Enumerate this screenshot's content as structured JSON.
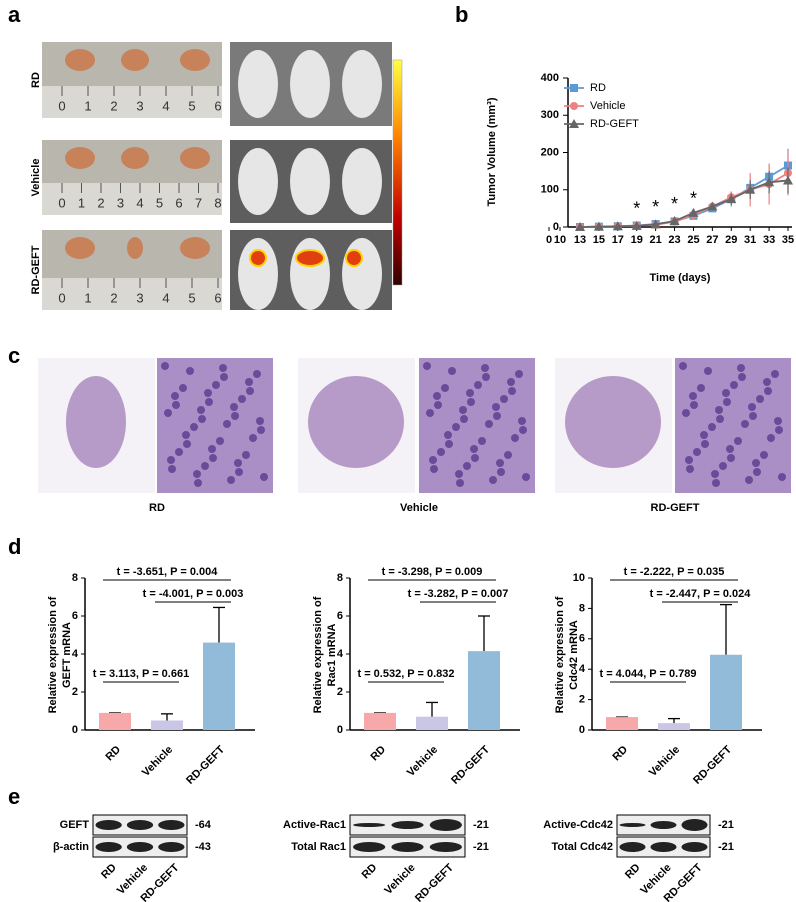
{
  "panel_labels": [
    "a",
    "b",
    "c",
    "d",
    "e"
  ],
  "panel_a": {
    "rows": [
      "RD",
      "Vehicle",
      "RD-GEFT"
    ],
    "rulers": [
      [
        0,
        1,
        2,
        3,
        4,
        5,
        6
      ],
      [
        0,
        1,
        2,
        3,
        4,
        5,
        6,
        7,
        8
      ],
      [
        0,
        1,
        2,
        3,
        4,
        5,
        6
      ]
    ]
  },
  "panel_c": {
    "labels": [
      "RD",
      "Vehicle",
      "RD-GEFT"
    ]
  },
  "panel_e": {
    "lanes": [
      "RD",
      "Vehicle",
      "RD-GEFT"
    ],
    "blots": [
      {
        "labels": [
          "GEFT",
          "β-actin"
        ],
        "sizes": [
          "-64",
          "-43"
        ]
      },
      {
        "labels": [
          "Active-Rac1",
          "Total Rac1"
        ],
        "sizes": [
          "-21",
          "-21"
        ]
      },
      {
        "labels": [
          "Active-Cdc42",
          "Total Cdc42"
        ],
        "sizes": [
          "-21",
          "-21"
        ]
      }
    ]
  },
  "chart_data": [
    {
      "type": "line",
      "xlabel": "Time (days)",
      "ylabel": "Tumor Volume (mm³)",
      "xlim": [
        0,
        35
      ],
      "ylim": [
        0,
        400
      ],
      "xticks": [
        0,
        10,
        13,
        15,
        17,
        19,
        21,
        23,
        25,
        27,
        29,
        31,
        33,
        35
      ],
      "yticks": [
        0,
        100,
        200,
        300,
        400
      ],
      "x": [
        13,
        15,
        17,
        19,
        21,
        23,
        25,
        27,
        29,
        31,
        33,
        35
      ],
      "series": [
        {
          "name": "RD",
          "color": "#5b9bd5",
          "marker": "square",
          "values": [
            0,
            1,
            2,
            4,
            8,
            15,
            30,
            50,
            75,
            105,
            135,
            165
          ],
          "errors": [
            0,
            0,
            1,
            2,
            3,
            5,
            8,
            10,
            20,
            25,
            35,
            45
          ]
        },
        {
          "name": "Vehicle",
          "color": "#f08080",
          "marker": "circle",
          "values": [
            0,
            1,
            2,
            3,
            6,
            14,
            32,
            55,
            80,
            100,
            115,
            145
          ],
          "errors": [
            0,
            0,
            1,
            2,
            3,
            5,
            8,
            10,
            15,
            45,
            55,
            60
          ]
        },
        {
          "name": "RD-GEFT",
          "color": "#666666",
          "marker": "triangle",
          "values": [
            0,
            1,
            2,
            3,
            7,
            16,
            38,
            55,
            75,
            100,
            120,
            125
          ],
          "errors": [
            0,
            0,
            1,
            2,
            3,
            5,
            8,
            10,
            15,
            25,
            30,
            35
          ]
        }
      ],
      "annotations": [
        {
          "x": 19,
          "text": "*"
        },
        {
          "x": 21,
          "text": "*"
        },
        {
          "x": 23,
          "text": "*"
        },
        {
          "x": 25,
          "text": "*"
        }
      ],
      "legend": "upper left"
    },
    {
      "type": "bar",
      "ylabel": [
        "Relative expression of",
        "GEFT mRNA"
      ],
      "categories": [
        "RD",
        "Vehicle",
        "RD-GEFT"
      ],
      "values": [
        0.9,
        0.5,
        4.6
      ],
      "errors": [
        0,
        0.35,
        1.85
      ],
      "colors": [
        "#f7a8a8",
        "#c9c6e6",
        "#92bad9"
      ],
      "ylim": [
        0,
        8
      ],
      "yticks": [
        0,
        2,
        4,
        6,
        8
      ],
      "comparisons": [
        "t = -3.651, P = 0.004",
        "t = -4.001, P = 0.003",
        "t = 3.113, P = 0.661"
      ]
    },
    {
      "type": "bar",
      "ylabel": [
        "Relative expression of",
        "Rac1 mRNA"
      ],
      "categories": [
        "RD",
        "Vehicle",
        "RD-GEFT"
      ],
      "values": [
        0.9,
        0.7,
        4.15
      ],
      "errors": [
        0,
        0.75,
        1.85
      ],
      "colors": [
        "#f7a8a8",
        "#c9c6e6",
        "#92bad9"
      ],
      "ylim": [
        0,
        8
      ],
      "yticks": [
        0,
        2,
        4,
        6,
        8
      ],
      "comparisons": [
        "t = -3.298, P = 0.009",
        "t = -3.282, P = 0.007",
        "t = 0.532, P = 0.832"
      ]
    },
    {
      "type": "bar",
      "ylabel": [
        "Relative expression of",
        "Cdc42 mRNA"
      ],
      "categories": [
        "RD",
        "Vehicle",
        "RD-GEFT"
      ],
      "values": [
        0.85,
        0.45,
        4.95
      ],
      "errors": [
        0,
        0.3,
        3.3
      ],
      "colors": [
        "#f7a8a8",
        "#c9c6e6",
        "#92bad9"
      ],
      "ylim": [
        0,
        10
      ],
      "yticks": [
        0,
        2,
        4,
        6,
        8,
        10
      ],
      "comparisons": [
        "t = -2.222, P = 0.035",
        "t = -2.447, P = 0.024",
        "t = 4.044, P = 0.789"
      ]
    }
  ]
}
